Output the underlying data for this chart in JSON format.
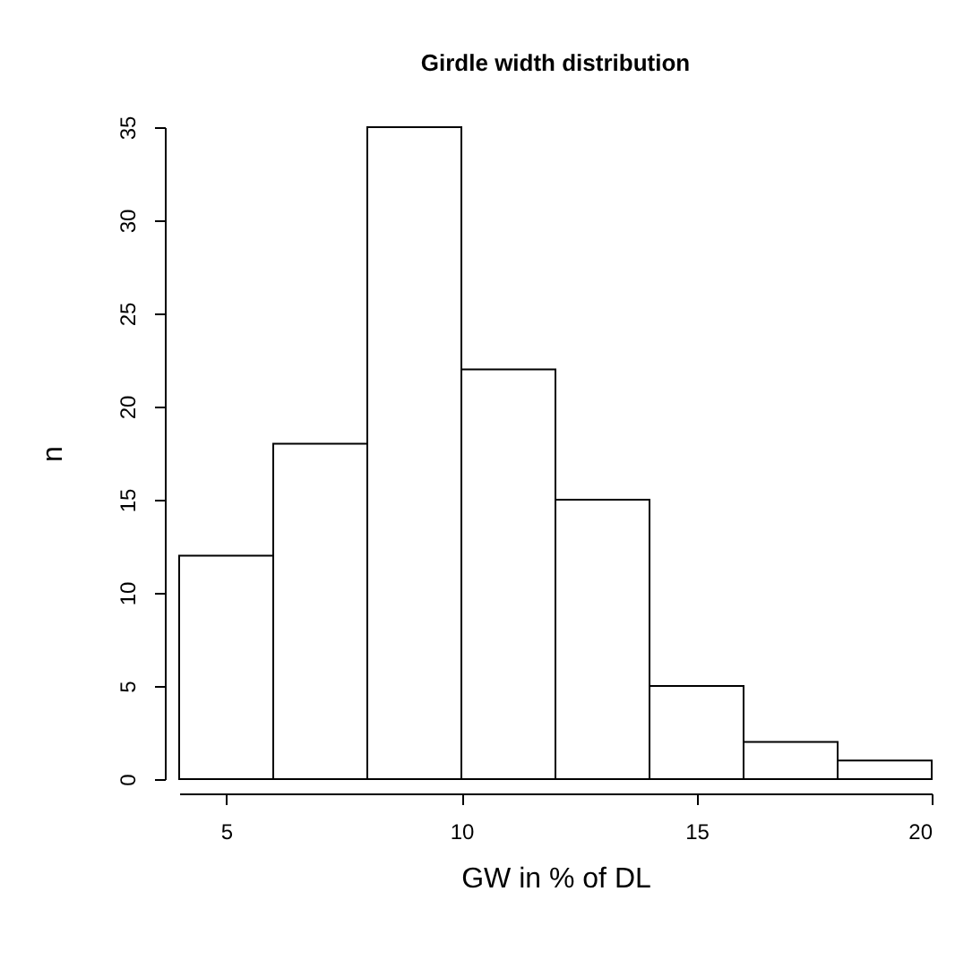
{
  "chart_data": {
    "type": "histogram",
    "title": "Girdle width distribution",
    "xlabel": "GW in % of DL",
    "ylabel": "n",
    "bins": [
      4,
      6,
      8,
      10,
      12,
      14,
      16,
      18,
      20
    ],
    "values": [
      12,
      18,
      35,
      22,
      15,
      5,
      2,
      1
    ],
    "color": "#ffffff",
    "xlim": [
      4,
      20
    ],
    "xticks": [
      5,
      10,
      15,
      20
    ],
    "ylim": [
      0,
      35
    ],
    "yticks": [
      0,
      5,
      10,
      15,
      20,
      25,
      30,
      35
    ],
    "grid": false
  }
}
